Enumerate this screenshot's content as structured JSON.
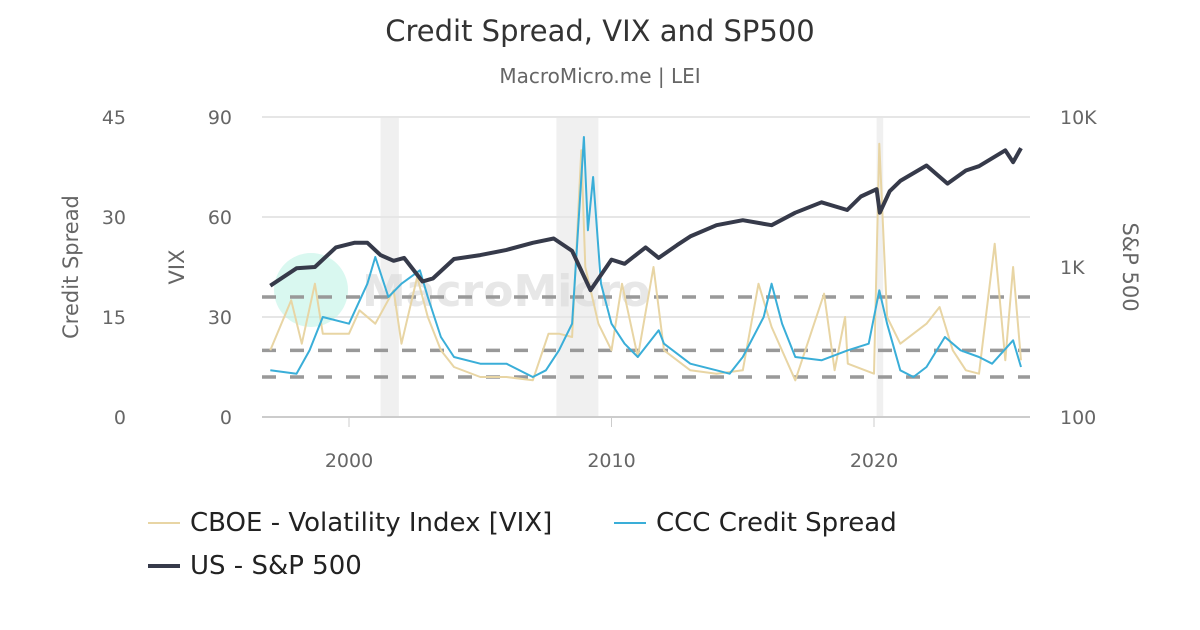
{
  "chart_data": {
    "type": "line",
    "title": "Credit Spread, VIX and SP500",
    "subtitle": "MacroMicro.me | LEI",
    "watermark": "MacroMicro",
    "x_ticks": [
      "2000",
      "2010",
      "2020"
    ],
    "xlim": [
      1996.9,
      2025.7
    ],
    "axes": {
      "credit": {
        "label": "Credit Spread",
        "ticks": [
          "0",
          "15",
          "30",
          "45"
        ],
        "ylim": [
          0,
          45
        ],
        "position": "left-outer"
      },
      "vix": {
        "label": "VIX",
        "ticks": [
          "0",
          "30",
          "60",
          "90"
        ],
        "ylim": [
          0,
          90
        ],
        "position": "left-inner"
      },
      "sp500": {
        "label": "S&P 500",
        "ticks": [
          "100",
          "1K",
          "10K"
        ],
        "ylim": [
          100,
          10000
        ],
        "scale": "log",
        "position": "right"
      }
    },
    "grid": true,
    "reference_lines_credit": [
      18,
      10,
      6
    ],
    "recessions": [
      [
        2001.2,
        2001.9
      ],
      [
        2007.9,
        2009.5
      ],
      [
        2020.1,
        2020.35
      ]
    ],
    "legend_position": "bottom",
    "series": [
      {
        "name": "CBOE - Volatility Index [VIX]",
        "axis": "vix",
        "color": "#e8d5a4",
        "x": [
          1997,
          1997.8,
          1998.2,
          1998.7,
          1999,
          2000,
          2000.4,
          2001,
          2001.7,
          2002,
          2002.6,
          2003,
          2003.5,
          2004,
          2005,
          2006,
          2007,
          2007.6,
          2008,
          2008.5,
          2008.85,
          2009,
          2009.5,
          2010,
          2010.4,
          2011,
          2011.6,
          2012,
          2013,
          2014,
          2015,
          2015.6,
          2016.1,
          2017,
          2018.1,
          2018.5,
          2018.9,
          2019,
          2020,
          2020.2,
          2020.5,
          2021,
          2022,
          2022.5,
          2023,
          2023.5,
          2024,
          2024.6,
          2025,
          2025.3,
          2025.6
        ],
        "y": [
          20,
          35,
          22,
          40,
          25,
          25,
          32,
          28,
          38,
          22,
          42,
          30,
          20,
          15,
          12,
          12,
          11,
          25,
          25,
          24,
          80,
          45,
          28,
          20,
          40,
          18,
          45,
          20,
          14,
          13,
          14,
          40,
          27,
          11,
          37,
          14,
          30,
          16,
          13,
          82,
          30,
          22,
          28,
          33,
          20,
          14,
          13,
          52,
          17,
          45,
          17
        ]
      },
      {
        "name": "CCC Credit Spread",
        "axis": "credit",
        "color": "#3aaed8",
        "x": [
          1997,
          1998,
          1998.5,
          1999,
          2000,
          2000.7,
          2001,
          2001.5,
          2002,
          2002.7,
          2003,
          2003.5,
          2004,
          2005,
          2006,
          2007,
          2007.5,
          2008,
          2008.5,
          2008.95,
          2009.1,
          2009.3,
          2009.6,
          2010,
          2010.5,
          2011,
          2011.8,
          2012,
          2013,
          2014,
          2014.5,
          2015,
          2015.8,
          2016.1,
          2016.5,
          2017,
          2018,
          2019,
          2019.8,
          2020.2,
          2020.5,
          2021,
          2021.5,
          2022,
          2022.7,
          2023.3,
          2024,
          2024.5,
          2025.3,
          2025.6
        ],
        "y": [
          7,
          6.5,
          10,
          15,
          14,
          20,
          24,
          18,
          20,
          22,
          18,
          12,
          9,
          8,
          8,
          6,
          7,
          10,
          14,
          42,
          28,
          36,
          20,
          14,
          11,
          9,
          13,
          11,
          8,
          7,
          6.5,
          9,
          15,
          20,
          14,
          9,
          8.5,
          10,
          11,
          19,
          14,
          7,
          6,
          7.5,
          12,
          10,
          9,
          8,
          11.5,
          7.5
        ]
      },
      {
        "name": "US - S&P 500",
        "axis": "sp500",
        "color": "#363a4a",
        "x": [
          1997,
          1998,
          1998.7,
          1999.5,
          2000.2,
          2000.7,
          2001.2,
          2001.7,
          2002.1,
          2002.8,
          2003.2,
          2004,
          2005,
          2006,
          2007,
          2007.8,
          2008.5,
          2009.2,
          2010,
          2010.5,
          2011.3,
          2011.8,
          2012.5,
          2013,
          2014,
          2015,
          2016.1,
          2017,
          2018,
          2018.98,
          2019.5,
          2020.1,
          2020.22,
          2020.6,
          2021,
          2022,
          2022.8,
          2023.5,
          2024,
          2025,
          2025.3,
          2025.6
        ],
        "y": [
          750,
          980,
          1000,
          1350,
          1450,
          1450,
          1200,
          1100,
          1150,
          800,
          840,
          1130,
          1200,
          1300,
          1450,
          1550,
          1280,
          700,
          1120,
          1050,
          1350,
          1150,
          1400,
          1600,
          1900,
          2050,
          1900,
          2300,
          2700,
          2400,
          2950,
          3300,
          2300,
          3200,
          3750,
          4750,
          3600,
          4400,
          4700,
          6000,
          5000,
          6200
        ]
      }
    ]
  }
}
